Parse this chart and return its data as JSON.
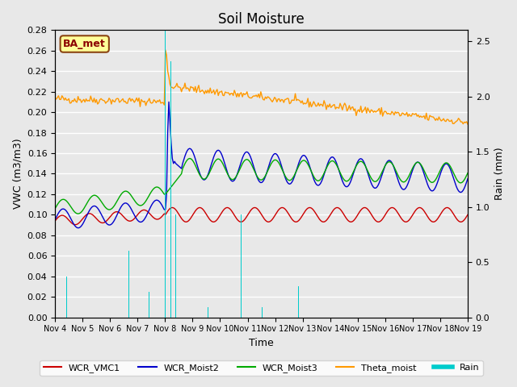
{
  "title": "Soil Moisture",
  "xlabel": "Time",
  "ylabel_left": "VWC (m3/m3)",
  "ylabel_right": "Rain (mm)",
  "ylim_left": [
    0.0,
    0.28
  ],
  "ylim_right": [
    0.0,
    2.6
  ],
  "background_color": "#e8e8e8",
  "grid_color": "#ffffff",
  "label_box": "BA_met",
  "legend_entries": [
    "WCR_VMC1",
    "WCR_Moist2",
    "WCR_Moist3",
    "Theta_moist",
    "Rain"
  ],
  "line_colors": {
    "WCR_VMC1": "#cc0000",
    "WCR_Moist2": "#0000cc",
    "WCR_Moist3": "#00aa00",
    "Theta_moist": "#ff9900",
    "Rain": "#00ffff"
  },
  "start_date": "2023-11-04",
  "end_date": "2023-11-19",
  "n_points": 360
}
